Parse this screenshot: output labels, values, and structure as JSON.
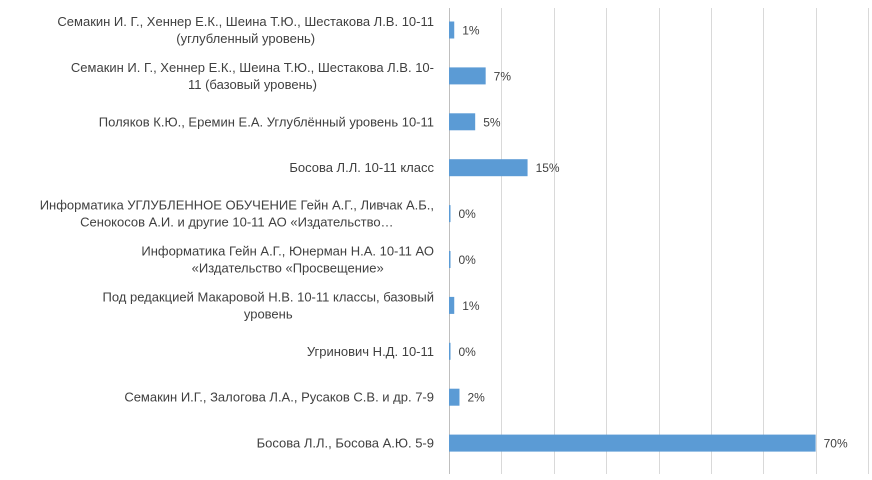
{
  "colors": {
    "bar": "#5b9bd5",
    "grid": "#d9d9d9",
    "text": "#404040"
  },
  "chart_data": {
    "type": "bar",
    "orientation": "horizontal",
    "title": "",
    "xlabel": "",
    "ylabel": "",
    "grid": true,
    "legend": "none",
    "xlim": [
      0,
      80
    ],
    "categories": [
      [
        "Семакин И. Г., Хеннер Е.К., Шеина Т.Ю., Шестакова Л.В.  10-11",
        "(углубленный уровень)"
      ],
      [
        "Семакин И. Г., Хеннер Е.К., Шеина Т.Ю., Шестакова Л.В.     10-",
        "11 (базовый уровень)"
      ],
      [
        "Поляков К.Ю., Еремин Е.А.  Углублённый уровень 10-11"
      ],
      [
        "Босова Л.Л. 10-11 класс"
      ],
      [
        "Информатика УГЛУБЛЕННОЕ ОБУЧЕНИЕ Гейн А.Г., Ливчак А.Б.,",
        "Сенокосов А.И. и другие 10-11 АО «Издательство…"
      ],
      [
        "Информатика Гейн А.Г., Юнерман Н.А. 10-11 АО",
        "«Издательство «Просвещение»"
      ],
      [
        "Под редакцией Макаровой Н.В. 10-11 классы, базовый",
        "уровень"
      ],
      [
        "Угринович Н.Д. 10-11"
      ],
      [
        "Семакин И.Г., Залогова Л.А., Русаков С.В. и др. 7-9"
      ],
      [
        "Босова Л.Л., Босова А.Ю. 5-9"
      ]
    ],
    "values": [
      1,
      7,
      5,
      15,
      0,
      0,
      1,
      0,
      2,
      70
    ],
    "value_labels": [
      "1%",
      "7%",
      "5%",
      "15%",
      "0%",
      "0%",
      "1%",
      "0%",
      "2%",
      "70%"
    ]
  }
}
